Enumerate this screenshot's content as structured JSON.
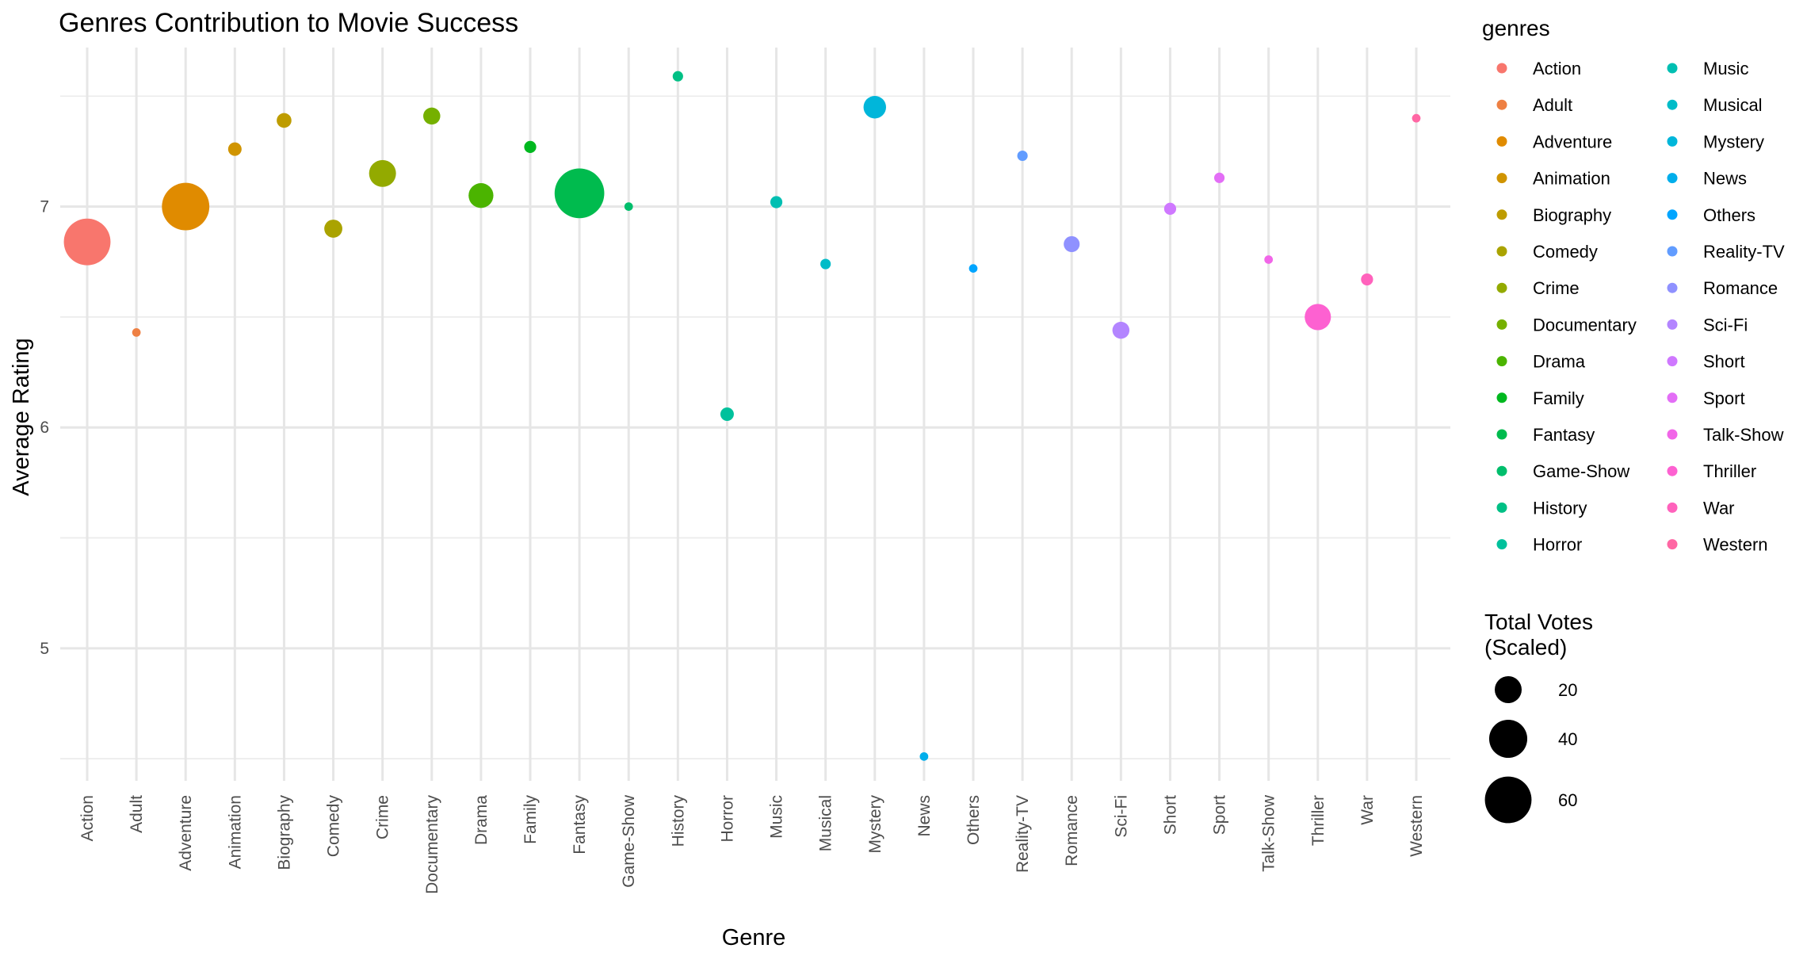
{
  "chart_data": {
    "type": "scatter",
    "title": "Genres Contribution to Movie Success",
    "xlabel": "Genre",
    "ylabel": "Average Rating",
    "ylim": [
      4.4,
      7.72
    ],
    "yticks": [
      5,
      6,
      7
    ],
    "grid": true,
    "legend_position": "right",
    "color_legend_title": "genres",
    "size_legend_title_lines": [
      "Total Votes",
      "(Scaled)"
    ],
    "size_legend": [
      20,
      40,
      60
    ],
    "categories": [
      "Action",
      "Adult",
      "Adventure",
      "Animation",
      "Biography",
      "Comedy",
      "Crime",
      "Documentary",
      "Drama",
      "Family",
      "Fantasy",
      "Game-Show",
      "History",
      "Horror",
      "Music",
      "Musical",
      "Mystery",
      "News",
      "Others",
      "Reality-TV",
      "Romance",
      "Sci-Fi",
      "Short",
      "Sport",
      "Talk-Show",
      "Thriller",
      "War",
      "Western"
    ],
    "colors": [
      "#F8766D",
      "#EE8043",
      "#E08B00",
      "#D09400",
      "#BE9C00",
      "#AAA300",
      "#93AA00",
      "#75B000",
      "#4BB400",
      "#00B81F",
      "#00BB4E",
      "#00BE6C",
      "#00C085",
      "#00C19C",
      "#00BFB2",
      "#00BCC8",
      "#00B6DA",
      "#00AEEB",
      "#00A5FF",
      "#619CFF",
      "#8F91FF",
      "#B385FF",
      "#CF78FF",
      "#E36EF6",
      "#F166E8",
      "#FD61D1",
      "#FF62BC",
      "#FF67A4"
    ],
    "ratings": [
      6.84,
      6.43,
      7.0,
      7.26,
      7.39,
      6.9,
      7.15,
      7.41,
      7.05,
      7.27,
      7.06,
      7.0,
      7.59,
      6.06,
      7.02,
      6.74,
      7.45,
      4.51,
      6.72,
      7.23,
      6.83,
      6.44,
      6.99,
      7.13,
      6.76,
      6.5,
      6.67,
      7.4
    ],
    "votes": [
      60,
      2,
      62,
      5,
      6,
      9,
      20,
      8,
      17,
      4,
      68,
      2,
      3,
      5,
      4,
      3,
      14,
      2,
      2,
      3,
      7,
      8,
      4,
      3,
      2,
      19,
      4,
      2
    ]
  }
}
